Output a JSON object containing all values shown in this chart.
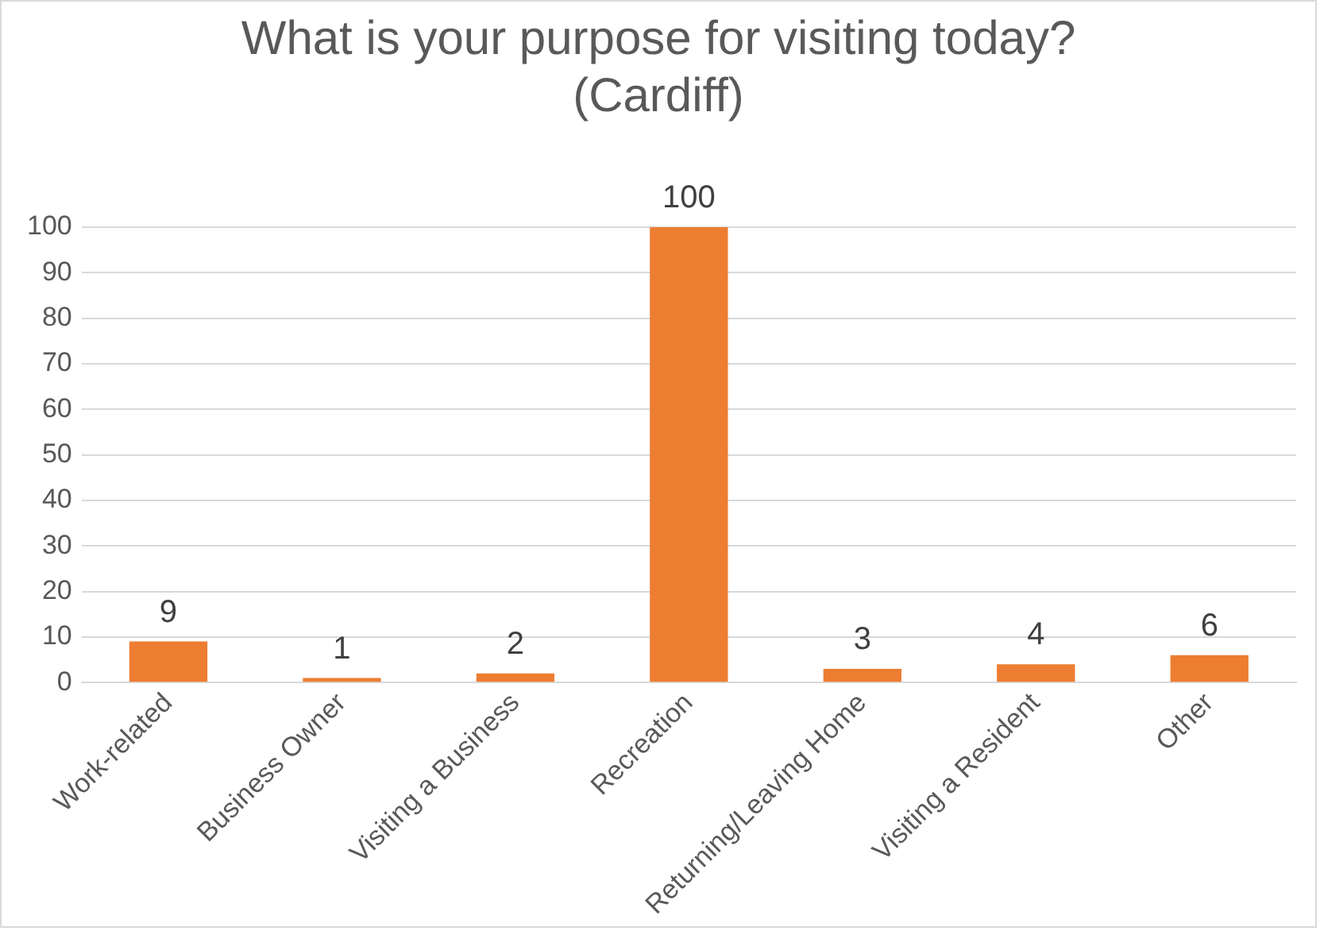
{
  "chart_data": {
    "type": "bar",
    "title": "What is your purpose for visiting today? (Cardiff)",
    "categories": [
      "Work-related",
      "Business Owner",
      "Visiting a Business",
      "Recreation",
      "Returning/Leaving Home",
      "Visiting a Resident",
      "Other"
    ],
    "values": [
      9,
      1,
      2,
      100,
      3,
      4,
      6
    ],
    "color": "#ed7d31",
    "ylim": [
      0,
      100
    ],
    "yticks": [
      0,
      10,
      20,
      30,
      40,
      50,
      60,
      70,
      80,
      90,
      100
    ],
    "grid": "y",
    "data_labels": true
  }
}
